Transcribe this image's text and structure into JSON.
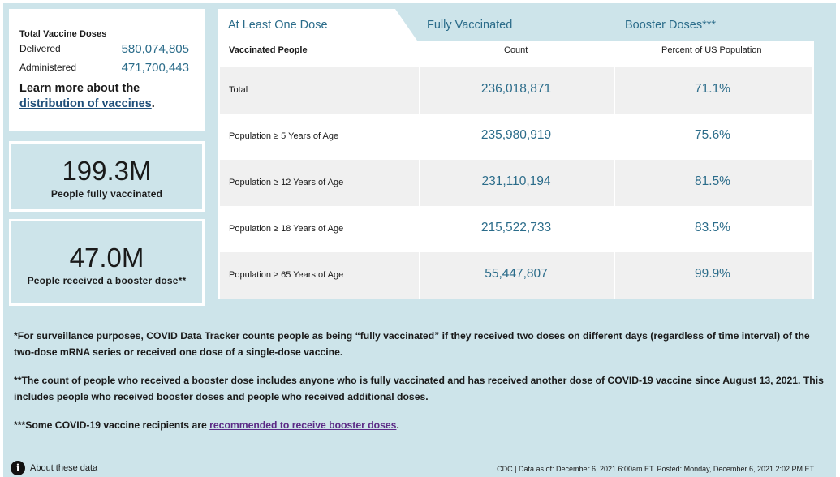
{
  "totals": {
    "title": "Total Vaccine Doses",
    "delivered_label": "Delivered",
    "delivered_value": "580,074,805",
    "administered_label": "Administered",
    "administered_value": "471,700,443",
    "learn_prefix": "Learn more about the ",
    "learn_link": "distribution of vaccines",
    "learn_suffix": "."
  },
  "stats": {
    "fully_value": "199.3M",
    "fully_caption": "People fully vaccinated",
    "booster_value": "47.0M",
    "booster_caption": "People received a booster dose**"
  },
  "tabs": [
    {
      "label": "At Least One Dose",
      "active": true
    },
    {
      "label": "Fully Vaccinated",
      "active": false
    },
    {
      "label": "Booster Doses***",
      "active": false
    }
  ],
  "table": {
    "headers": [
      "Vaccinated People",
      "Count",
      "Percent of US Population"
    ],
    "rows": [
      {
        "label": "Total",
        "count": "236,018,871",
        "percent": "71.1%"
      },
      {
        "label": "Population ≥ 5 Years of Age",
        "count": "235,980,919",
        "percent": "75.6%"
      },
      {
        "label": "Population ≥ 12 Years of Age",
        "count": "231,110,194",
        "percent": "81.5%"
      },
      {
        "label": "Population ≥ 18 Years of Age",
        "count": "215,522,733",
        "percent": "83.5%"
      },
      {
        "label": "Population ≥ 65 Years of Age",
        "count": "55,447,807",
        "percent": "99.9%"
      }
    ]
  },
  "notes": {
    "note1": "*For surveillance purposes, COVID Data Tracker counts people as being “fully vaccinated” if they received two doses on different days (regardless of time interval) of the two-dose mRNA series or received one dose of a single-dose vaccine.",
    "note2": "**The count of people who received a booster dose includes anyone who is fully vaccinated and has received another dose of COVID-19 vaccine since August 13, 2021. This includes people who received booster doses and people who received additional doses.",
    "note3_prefix": "***Some COVID-19 vaccine recipients are ",
    "note3_link": "recommended to receive booster doses",
    "note3_suffix": "."
  },
  "footer": {
    "about_label": "About these data",
    "info_icon_glyph": "i",
    "stamp": "CDC | Data as of: December 6, 2021 6:00am ET. Posted: Monday, December 6, 2021 2:02 PM ET"
  },
  "colors": {
    "panel": "#cde4ea",
    "accent": "#2b6c8a",
    "link": "#1f4f7a",
    "visited_link": "#5b2a86"
  }
}
